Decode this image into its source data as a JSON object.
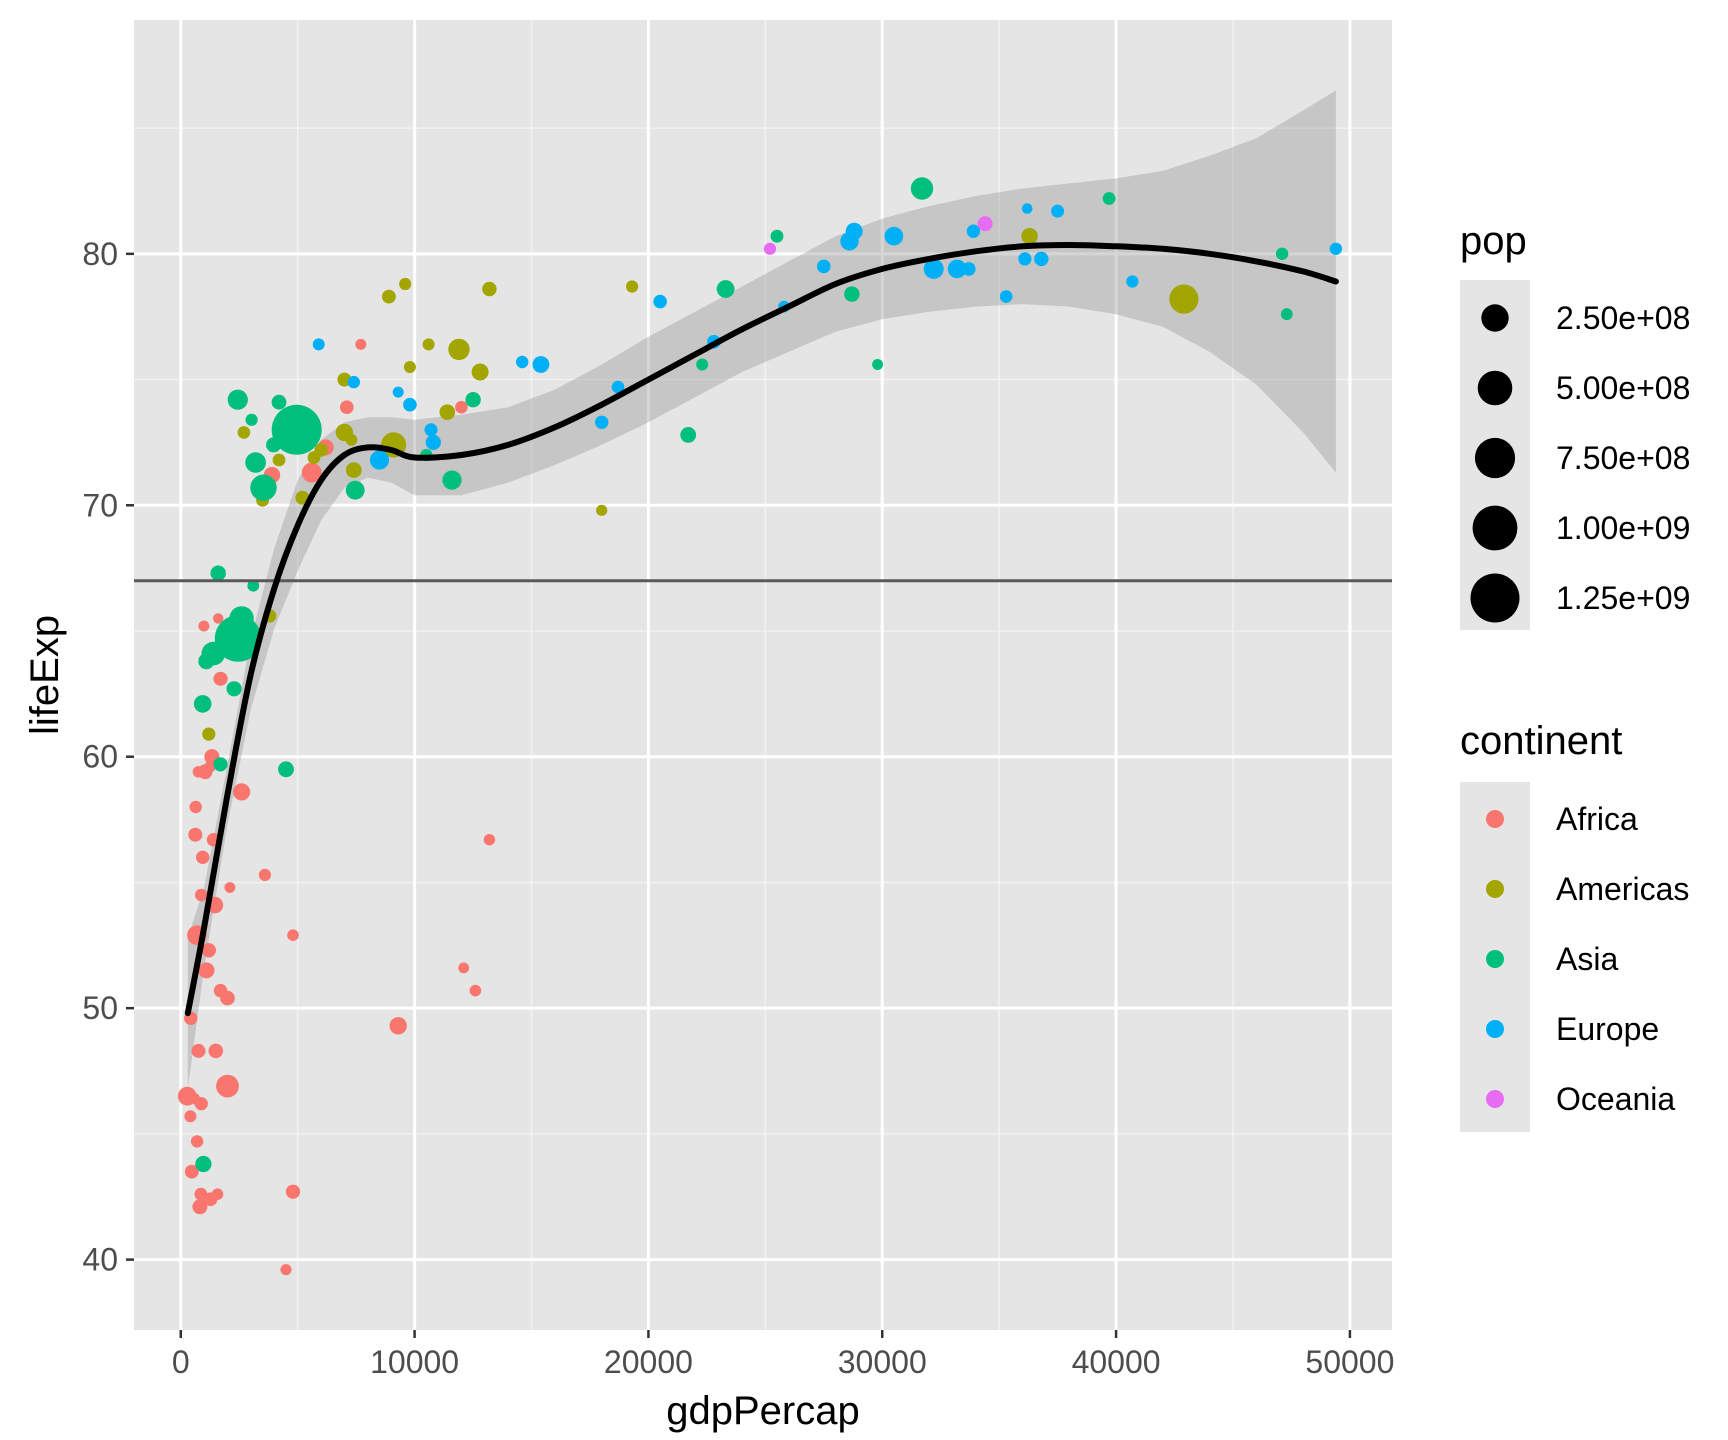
{
  "chart_data": {
    "type": "scatter",
    "xlabel": "gdpPercap",
    "ylabel": "lifeExp",
    "xlim": [
      -2000,
      51800
    ],
    "ylim": [
      37.2,
      89.3
    ],
    "x_ticks": [
      0,
      10000,
      20000,
      30000,
      40000,
      50000
    ],
    "y_ticks": [
      40,
      50,
      60,
      70,
      80
    ],
    "x_tick_labels": [
      "0",
      "10000",
      "20000",
      "30000",
      "40000",
      "50000"
    ],
    "y_tick_labels": [
      "40",
      "50",
      "60",
      "70",
      "80"
    ],
    "grid": true,
    "background": "#e5e5e5",
    "hline": {
      "y": 67,
      "color": "#595959"
    },
    "smooth": {
      "color": "#000000",
      "band_color": "#999999",
      "points": [
        {
          "x": 300,
          "y": 49.8,
          "lo": 46.8,
          "hi": 52.8
        },
        {
          "x": 1000,
          "y": 53.2,
          "lo": 51.6,
          "hi": 54.8
        },
        {
          "x": 2000,
          "y": 58.5,
          "lo": 57.3,
          "hi": 59.7
        },
        {
          "x": 3000,
          "y": 63.3,
          "lo": 61.9,
          "hi": 64.7
        },
        {
          "x": 4000,
          "y": 66.7,
          "lo": 65.1,
          "hi": 68.3
        },
        {
          "x": 5000,
          "y": 69.2,
          "lo": 67.4,
          "hi": 71.0
        },
        {
          "x": 6000,
          "y": 71.0,
          "lo": 69.4,
          "hi": 72.6
        },
        {
          "x": 7000,
          "y": 72.0,
          "lo": 70.7,
          "hi": 73.3
        },
        {
          "x": 8000,
          "y": 72.3,
          "lo": 71.1,
          "hi": 73.5
        },
        {
          "x": 9000,
          "y": 72.2,
          "lo": 70.9,
          "hi": 73.5
        },
        {
          "x": 10000,
          "y": 71.9,
          "lo": 70.4,
          "hi": 73.4
        },
        {
          "x": 12000,
          "y": 72.0,
          "lo": 70.4,
          "hi": 73.6
        },
        {
          "x": 14000,
          "y": 72.4,
          "lo": 70.9,
          "hi": 73.9
        },
        {
          "x": 16000,
          "y": 73.1,
          "lo": 71.6,
          "hi": 74.6
        },
        {
          "x": 18000,
          "y": 74.0,
          "lo": 72.4,
          "hi": 75.6
        },
        {
          "x": 20000,
          "y": 75.0,
          "lo": 73.3,
          "hi": 76.7
        },
        {
          "x": 22000,
          "y": 76.0,
          "lo": 74.3,
          "hi": 77.7
        },
        {
          "x": 24000,
          "y": 77.0,
          "lo": 75.3,
          "hi": 78.7
        },
        {
          "x": 26000,
          "y": 77.9,
          "lo": 76.1,
          "hi": 79.7
        },
        {
          "x": 28000,
          "y": 78.8,
          "lo": 76.9,
          "hi": 80.7
        },
        {
          "x": 30000,
          "y": 79.4,
          "lo": 77.4,
          "hi": 81.4
        },
        {
          "x": 32000,
          "y": 79.8,
          "lo": 77.7,
          "hi": 81.9
        },
        {
          "x": 34000,
          "y": 80.1,
          "lo": 77.9,
          "hi": 82.3
        },
        {
          "x": 36000,
          "y": 80.3,
          "lo": 78.0,
          "hi": 82.6
        },
        {
          "x": 38000,
          "y": 80.35,
          "lo": 77.9,
          "hi": 82.8
        },
        {
          "x": 40000,
          "y": 80.3,
          "lo": 77.6,
          "hi": 83.0
        },
        {
          "x": 42000,
          "y": 80.2,
          "lo": 77.1,
          "hi": 83.3
        },
        {
          "x": 44000,
          "y": 80.0,
          "lo": 76.1,
          "hi": 83.9
        },
        {
          "x": 46000,
          "y": 79.7,
          "lo": 74.8,
          "hi": 84.6
        },
        {
          "x": 48000,
          "y": 79.3,
          "lo": 72.9,
          "hi": 85.7
        },
        {
          "x": 49400,
          "y": 78.9,
          "lo": 71.3,
          "hi": 86.5
        }
      ]
    },
    "size_legend": {
      "title": "pop",
      "entries": [
        {
          "label": "2.50e+08",
          "value": 250000000
        },
        {
          "label": "5.00e+08",
          "value": 500000000
        },
        {
          "label": "7.50e+08",
          "value": 750000000
        },
        {
          "label": "1.00e+09",
          "value": 1000000000
        },
        {
          "label": "1.25e+09",
          "value": 1250000000
        }
      ]
    },
    "legend": {
      "title": "continent",
      "placement": "right",
      "entries": [
        {
          "name": "Africa",
          "color": "#F8766D"
        },
        {
          "name": "Americas",
          "color": "#A3A500"
        },
        {
          "name": "Asia",
          "color": "#00BF7D"
        },
        {
          "name": "Europe",
          "color": "#00B0F6"
        },
        {
          "name": "Oceania",
          "color": "#E76BF3"
        }
      ]
    },
    "series": [
      {
        "name": "Africa",
        "points": [
          [
            6200,
            72.3,
            30000000
          ],
          [
            4800,
            42.7,
            15000000
          ],
          [
            1400,
            56.7,
            10000000
          ],
          [
            12600,
            50.7,
            2000000
          ],
          [
            1200,
            52.3,
            16000000
          ],
          [
            430,
            49.6,
            9000000
          ],
          [
            2000,
            50.4,
            18000000
          ],
          [
            700,
            44.7,
            4500000
          ],
          [
            1700,
            50.7,
            10000000
          ],
          [
            990,
            65.2,
            700000
          ],
          [
            280,
            46.5,
            65000000
          ],
          [
            3600,
            55.3,
            3800000
          ],
          [
            1500,
            48.3,
            18000000
          ],
          [
            2100,
            54.8,
            500000
          ],
          [
            5600,
            71.3,
            80000000
          ],
          [
            12100,
            51.6,
            550000
          ],
          [
            640,
            58.0,
            4900000
          ],
          [
            690,
            52.9,
            76000000
          ],
          [
            13200,
            56.7,
            1450000
          ],
          [
            750,
            59.4,
            1700000
          ],
          [
            1330,
            60.0,
            22900000
          ],
          [
            940,
            56.0,
            9900000
          ],
          [
            580,
            46.4,
            1500000
          ],
          [
            1460,
            54.1,
            35600000
          ],
          [
            1570,
            42.6,
            2000000
          ],
          [
            410,
            45.7,
            3200000
          ],
          [
            12000,
            73.9,
            6000000
          ],
          [
            1040,
            59.4,
            19200000
          ],
          [
            760,
            48.3,
            13300000
          ],
          [
            1800,
            64.2,
            1000000
          ],
          [
            1690,
            63.1,
            12000000
          ],
          [
            3900,
            71.2,
            33800000
          ],
          [
            820,
            42.1,
            20000000
          ],
          [
            4800,
            52.9,
            2000000
          ],
          [
            620,
            56.9,
            12900000
          ],
          [
            2000,
            46.9,
            135000000
          ],
          [
            7700,
            76.4,
            800000
          ],
          [
            880,
            46.2,
            8900000
          ],
          [
            1600,
            65.5,
            200000
          ],
          [
            1710,
            63.1,
            12300000
          ],
          [
            860,
            42.6,
            6100000
          ],
          [
            9300,
            49.3,
            44000000
          ],
          [
            4500,
            39.6,
            1100000
          ],
          [
            2600,
            58.6,
            42300000
          ],
          [
            880,
            54.5,
            5700000
          ],
          [
            1250,
            59.6,
            2000000
          ],
          [
            7100,
            73.9,
            10300000
          ],
          [
            1100,
            51.5,
            29200000
          ],
          [
            1270,
            42.4,
            11700000
          ],
          [
            470,
            43.5,
            12300000
          ]
        ]
      },
      {
        "name": "Americas",
        "points": [
          [
            12800,
            75.3,
            40000000
          ],
          [
            3800,
            65.6,
            9100000
          ],
          [
            9100,
            72.4,
            190000000
          ],
          [
            36300,
            80.7,
            33400000
          ],
          [
            13200,
            78.6,
            16300000
          ],
          [
            7000,
            72.9,
            44200000
          ],
          [
            9600,
            78.8,
            4100000
          ],
          [
            8900,
            78.3,
            11400000
          ],
          [
            6000,
            72.2,
            9300000
          ],
          [
            7000,
            75.0,
            13800000
          ],
          [
            5700,
            71.9,
            6900000
          ],
          [
            5200,
            70.3,
            12600000
          ],
          [
            1200,
            60.9,
            8500000
          ],
          [
            3500,
            70.2,
            7500000
          ],
          [
            7300,
            72.6,
            2800000
          ],
          [
            11900,
            76.2,
            108700000
          ],
          [
            2700,
            72.9,
            5700000
          ],
          [
            9800,
            75.5,
            3200000
          ],
          [
            4200,
            71.8,
            6700000
          ],
          [
            7400,
            71.4,
            28700000
          ],
          [
            19300,
            78.7,
            3900000
          ],
          [
            18000,
            69.8,
            1000000
          ],
          [
            42900,
            78.2,
            301100000
          ],
          [
            10600,
            76.4,
            3400000
          ],
          [
            11400,
            73.7,
            26100000
          ]
        ]
      },
      {
        "name": "Asia",
        "points": [
          [
            970,
            43.8,
            31900000
          ],
          [
            29800,
            75.6,
            700000
          ],
          [
            1390,
            64.1,
            150400000
          ],
          [
            1700,
            59.7,
            14100000
          ],
          [
            4960,
            73.0,
            1318700000
          ],
          [
            39700,
            82.2,
            6900000
          ],
          [
            2450,
            64.7,
            1110400000
          ],
          [
            3540,
            70.7,
            223500000
          ],
          [
            11600,
            71.0,
            69500000
          ],
          [
            4500,
            59.5,
            27500000
          ],
          [
            25500,
            80.7,
            6400000
          ],
          [
            31700,
            82.6,
            127500000
          ],
          [
            4500,
            72.5,
            6100000
          ],
          [
            1600,
            67.3,
            23300000
          ],
          [
            23300,
            78.6,
            49000000
          ],
          [
            47300,
            77.6,
            2500000
          ],
          [
            10500,
            72.0,
            3900000
          ],
          [
            12500,
            74.2,
            24800000
          ],
          [
            3100,
            66.8,
            2900000
          ],
          [
            940,
            62.1,
            47800000
          ],
          [
            1090,
            63.8,
            28900000
          ],
          [
            22300,
            75.6,
            3200000
          ],
          [
            2600,
            65.5,
            169300000
          ],
          [
            3200,
            71.7,
            91100000
          ],
          [
            21700,
            72.8,
            27600000
          ],
          [
            47100,
            80.0,
            4600000
          ],
          [
            3970,
            72.4,
            20400000
          ],
          [
            4200,
            74.1,
            19300000
          ],
          [
            28700,
            78.4,
            23200000
          ],
          [
            7460,
            70.6,
            65100000
          ],
          [
            2440,
            74.2,
            85300000
          ],
          [
            3030,
            73.4,
            4000000
          ],
          [
            2280,
            62.7,
            22200000
          ]
        ]
      },
      {
        "name": "Europe",
        "points": [
          [
            5900,
            76.4,
            3600000
          ],
          [
            36100,
            79.8,
            8200000
          ],
          [
            33700,
            79.4,
            10400000
          ],
          [
            7400,
            74.9,
            4600000
          ],
          [
            10700,
            73.0,
            7300000
          ],
          [
            14600,
            75.7,
            4500000
          ],
          [
            22800,
            76.5,
            10200000
          ],
          [
            35300,
            78.3,
            5500000
          ],
          [
            33200,
            79.3,
            5200000
          ],
          [
            30500,
            80.7,
            61100000
          ],
          [
            32200,
            79.4,
            82400000
          ],
          [
            27500,
            79.5,
            10700000
          ],
          [
            18000,
            73.3,
            9900000
          ],
          [
            36200,
            81.8,
            300000
          ],
          [
            40700,
            78.9,
            4100000
          ],
          [
            28600,
            80.5,
            58100000
          ],
          [
            9300,
            74.5,
            700000
          ],
          [
            36800,
            79.8,
            16600000
          ],
          [
            49400,
            80.2,
            4600000
          ],
          [
            15400,
            75.6,
            38500000
          ],
          [
            20500,
            78.1,
            10600000
          ],
          [
            10800,
            72.5,
            22300000
          ],
          [
            9800,
            74.0,
            10200000
          ],
          [
            18700,
            74.7,
            5400000
          ],
          [
            25800,
            77.9,
            2000000
          ],
          [
            28800,
            80.9,
            40400000
          ],
          [
            33900,
            80.9,
            9000000
          ],
          [
            37500,
            81.7,
            7600000
          ],
          [
            8500,
            71.8,
            71200000
          ],
          [
            33200,
            79.4,
            60800000
          ]
        ]
      },
      {
        "name": "Oceania",
        "points": [
          [
            34400,
            81.2,
            20400000
          ],
          [
            25200,
            80.2,
            4100000
          ]
        ]
      }
    ]
  }
}
